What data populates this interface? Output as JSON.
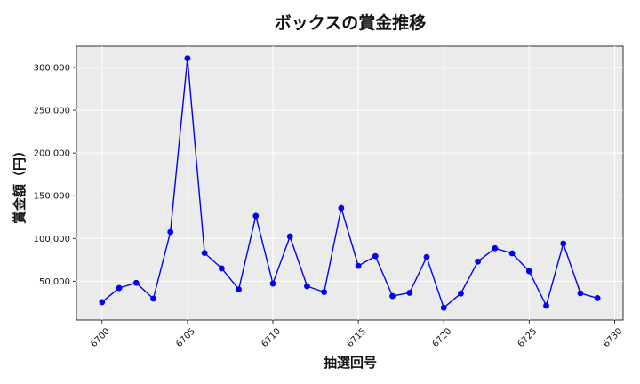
{
  "chart_data": {
    "type": "line",
    "title": "ボックスの賞金推移",
    "xlabel": "抽選回号",
    "ylabel": "賞金額（円）",
    "xlim": [
      6698.5,
      6730.5
    ],
    "ylim": [
      4600,
      325000
    ],
    "x_ticks": [
      6700,
      6705,
      6710,
      6715,
      6720,
      6725,
      6730
    ],
    "y_ticks": [
      50000,
      100000,
      150000,
      200000,
      250000,
      300000
    ],
    "y_tick_labels": [
      "50,000",
      "100,000",
      "150,000",
      "200,000",
      "250,000",
      "300,000"
    ],
    "grid": true,
    "series_color": "#0000ee",
    "plot_bg": "#ebebeb",
    "x": [
      6700,
      6701,
      6702,
      6703,
      6704,
      6705,
      6706,
      6707,
      6708,
      6709,
      6710,
      6711,
      6712,
      6713,
      6714,
      6715,
      6716,
      6717,
      6718,
      6719,
      6720,
      6721,
      6722,
      6723,
      6724,
      6725,
      6726,
      6727,
      6728,
      6729
    ],
    "values": [
      25500,
      42000,
      48000,
      29600,
      107600,
      310800,
      83000,
      65000,
      40500,
      126400,
      47200,
      102300,
      44100,
      37300,
      135600,
      67900,
      79400,
      32600,
      36400,
      78300,
      18900,
      35600,
      73000,
      88600,
      82600,
      61700,
      21300,
      94000,
      35900,
      30200
    ]
  }
}
